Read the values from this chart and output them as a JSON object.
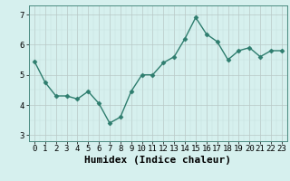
{
  "x": [
    0,
    1,
    2,
    3,
    4,
    5,
    6,
    7,
    8,
    9,
    10,
    11,
    12,
    13,
    14,
    15,
    16,
    17,
    18,
    19,
    20,
    21,
    22,
    23
  ],
  "y": [
    5.45,
    4.75,
    4.3,
    4.3,
    4.2,
    4.45,
    4.05,
    3.4,
    3.6,
    4.45,
    5.0,
    5.0,
    5.4,
    5.6,
    6.2,
    6.9,
    6.35,
    6.1,
    5.5,
    5.8,
    5.9,
    5.6,
    5.8,
    5.8
  ],
  "line_color": "#2e7d6e",
  "marker": "D",
  "markersize": 2.5,
  "linewidth": 1,
  "bg_color": "#d6f0ee",
  "grid_color_major": "#b8c8c6",
  "grid_color_minor": "#c5dedd",
  "xlabel": "Humidex (Indice chaleur)",
  "xlabel_fontsize": 8,
  "xlabel_fontweight": "bold",
  "yticks": [
    3,
    4,
    5,
    6,
    7
  ],
  "xticks": [
    0,
    1,
    2,
    3,
    4,
    5,
    6,
    7,
    8,
    9,
    10,
    11,
    12,
    13,
    14,
    15,
    16,
    17,
    18,
    19,
    20,
    21,
    22,
    23
  ],
  "ylim": [
    2.8,
    7.3
  ],
  "xlim": [
    -0.5,
    23.5
  ],
  "tick_fontsize": 6.5,
  "fig_bg_color": "#d6f0ee",
  "spine_color": "#4a8a80"
}
